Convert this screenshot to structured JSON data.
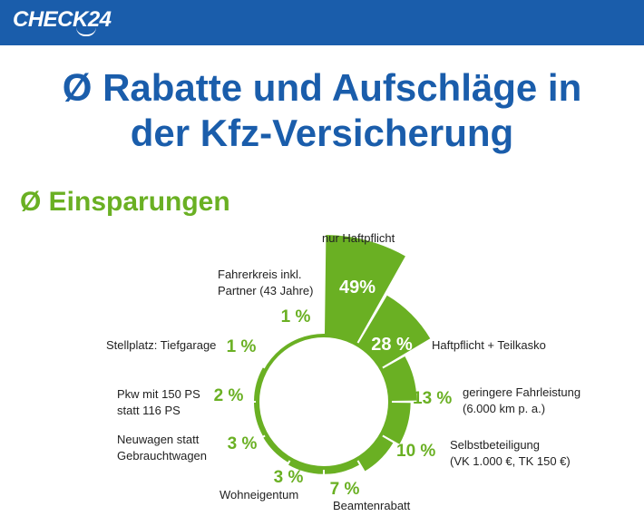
{
  "header": {
    "logo": "CHECK24"
  },
  "title_line1": "Ø Rabatte und Aufschläge in",
  "title_line2": "der Kfz-Versicherung",
  "subtitle": "Ø Einsparungen",
  "colors": {
    "bar": "#1a5dab",
    "accent_blue": "#1a5dab",
    "accent_green": "#6ab023"
  },
  "chart_data": {
    "type": "pie",
    "variant": "radial bars",
    "unit": "%",
    "series": [
      {
        "label_lines": [
          "nur Haftpflicht"
        ],
        "value": 49,
        "value_text": "49%"
      },
      {
        "label_lines": [
          "Haftpflicht + Teilkasko"
        ],
        "value": 28,
        "value_text": "28 %"
      },
      {
        "label_lines": [
          "geringere Fahrleistung",
          "(6.000 km p. a.)"
        ],
        "value": 13,
        "value_text": "13 %"
      },
      {
        "label_lines": [
          "Selbstbeteiligung",
          "(VK 1.000 €, TK 150 €)"
        ],
        "value": 10,
        "value_text": "10 %"
      },
      {
        "label_lines": [
          "Beamtenrabatt"
        ],
        "value": 7,
        "value_text": "7 %"
      },
      {
        "label_lines": [
          "Wohneigentum"
        ],
        "value": 3,
        "value_text": "3 %"
      },
      {
        "label_lines": [
          "Neuwagen statt",
          "Gebrauchtwagen"
        ],
        "value": 3,
        "value_text": "3 %"
      },
      {
        "label_lines": [
          "Pkw mit 150 PS",
          "statt 116 PS"
        ],
        "value": 2,
        "value_text": "2 %"
      },
      {
        "label_lines": [
          "Stellplatz: Tiefgarage"
        ],
        "value": 1,
        "value_text": "1 %"
      },
      {
        "label_lines": [
          "Fahrerkreis inkl.",
          "Partner (43 Jahre)"
        ],
        "value": 1,
        "value_text": "1 %"
      }
    ]
  }
}
